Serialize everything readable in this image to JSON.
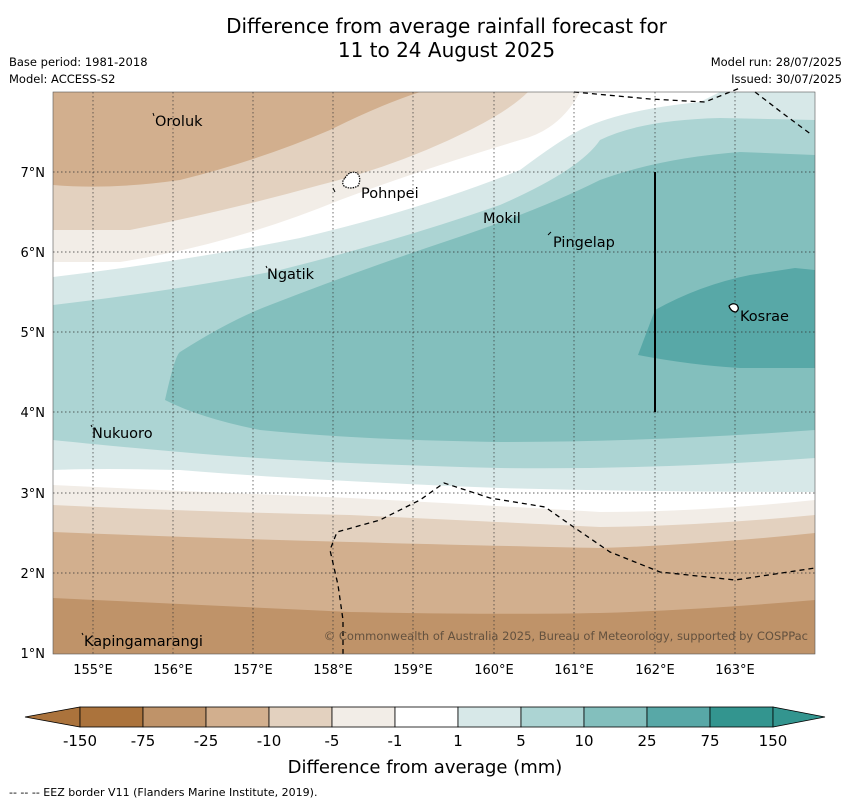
{
  "title": {
    "line1": "Difference from average rainfall forecast for",
    "line2": "11 to 24 August 2025"
  },
  "meta_left": {
    "base_period": "Base period: 1981-2018",
    "model": "Model: ACCESS-S2"
  },
  "meta_right": {
    "model_run": "Model run: 28/07/2025",
    "issued": "Issued: 30/07/2025"
  },
  "map": {
    "lon_ticks": [
      "155°E",
      "156°E",
      "157°E",
      "158°E",
      "159°E",
      "160°E",
      "161°E",
      "162°E",
      "163°E"
    ],
    "lat_ticks": [
      "7°N",
      "6°N",
      "5°N",
      "4°N",
      "3°N",
      "2°N",
      "1°N"
    ],
    "places": [
      "Oroluk",
      "Pohnpei",
      "Mokil",
      "Pingelap",
      "Ngatik",
      "Kosrae",
      "Nukuoro",
      "Kapingamarangi"
    ],
    "copyright": "© Commonwealth of Australia 2025, Bureau of Meteorology, supported by COSPPac"
  },
  "colorbar": {
    "ticks": [
      "-150",
      "-75",
      "-25",
      "-10",
      "-5",
      "-1",
      "1",
      "5",
      "10",
      "25",
      "75",
      "150"
    ],
    "colors": [
      "#ab733c",
      "#bf9369",
      "#d2af8e",
      "#e3d1bf",
      "#f2ede7",
      "#ffffff",
      "#d7e8e8",
      "#acd4d3",
      "#83bfbd",
      "#58a8a7",
      "#33958f"
    ],
    "title": "Difference from average (mm)"
  },
  "footer": {
    "legend_text": "-- -- -- EEZ border V11 (Flanders Marine Institute, 2019)."
  }
}
